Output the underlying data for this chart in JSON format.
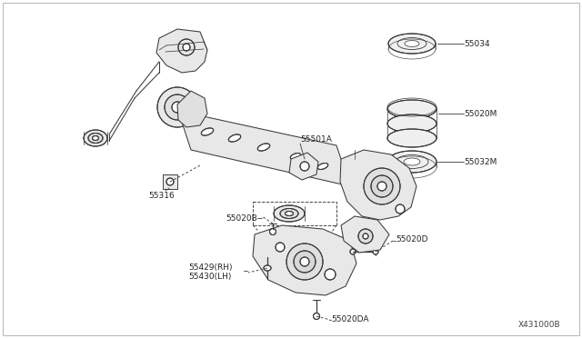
{
  "background_color": "#ffffff",
  "border_color": "#bbbbbb",
  "line_color": "#3a3a3a",
  "text_color": "#222222",
  "fig_width": 6.4,
  "fig_height": 3.72,
  "dpi": 100,
  "watermark": "X431000B",
  "label_55034": "55034",
  "label_55020M": "55020M",
  "label_55032M": "55032M",
  "label_55501A": "55501A",
  "label_55316": "55316",
  "label_55020B": "55020B",
  "label_55020D": "55020D",
  "label_55429": "55429(RH)",
  "label_55430": "55430(LH)",
  "label_55020DA": "55020DA"
}
